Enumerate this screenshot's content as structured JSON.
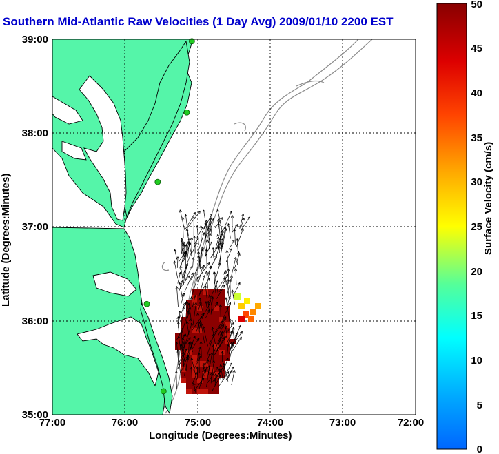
{
  "title": "Southern Mid-Atlantic Raw Velocities (1 Day Avg) 2009/01/10 2200 EST",
  "xlabel": "Longitude (Degrees:Minutes)",
  "ylabel": "Latitude (Degrees:Minutes)",
  "xticks": [
    "77:00",
    "76:00",
    "75:00",
    "74:00",
    "73:00",
    "72:00"
  ],
  "yticks": [
    "39:00",
    "38:00",
    "37:00",
    "36:00",
    "35:00"
  ],
  "colorbar": {
    "label": "Surface Velocity (cm/s)",
    "ticks": [
      "50",
      "45",
      "40",
      "35",
      "30",
      "25",
      "20",
      "15",
      "10",
      "5",
      "0"
    ],
    "range": [
      0,
      50
    ]
  },
  "colors": {
    "land": "#55f5a9",
    "water": "#ffffff",
    "coast": "#000000",
    "bathymetry": "#8c8c8c",
    "title": "#0000cc",
    "station": "#22cc22"
  },
  "stations": [
    {
      "lon": -75.08,
      "lat": 38.98
    },
    {
      "lon": -75.15,
      "lat": 38.22
    },
    {
      "lon": -75.55,
      "lat": 37.48
    },
    {
      "lon": -75.7,
      "lat": 36.18
    },
    {
      "lon": -75.47,
      "lat": 35.25
    }
  ]
}
